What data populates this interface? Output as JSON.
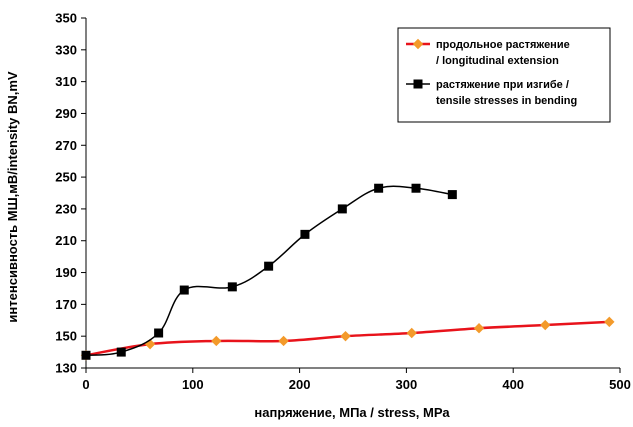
{
  "chart_data": {
    "type": "line",
    "xlabel": "напряжение, МПа / stress, МРа",
    "ylabel": "интенсивность МШ,мВ/intensity BN,mV",
    "xlim": [
      0,
      500
    ],
    "ylim": [
      130,
      350
    ],
    "x_ticks": [
      "0",
      "100",
      "200",
      "300",
      "400",
      "500"
    ],
    "y_ticks": [
      "130",
      "150",
      "170",
      "190",
      "210",
      "230",
      "250",
      "270",
      "290",
      "310",
      "330",
      "350"
    ],
    "grid": false,
    "legend_position": "top-right",
    "series": [
      {
        "name_lines": [
          "продольное растяжение",
          "/ longitudinal extension"
        ],
        "color": "#e8131b",
        "marker": "diamond",
        "marker_color": "#f39a2b",
        "points": [
          [
            0,
            138
          ],
          [
            60,
            145
          ],
          [
            122,
            147
          ],
          [
            185,
            147
          ],
          [
            243,
            150
          ],
          [
            305,
            152
          ],
          [
            368,
            155
          ],
          [
            430,
            157
          ],
          [
            490,
            159
          ]
        ]
      },
      {
        "name_lines": [
          "растяжение при изгибе /",
          "tensile stresses in bending"
        ],
        "color": "#000000",
        "marker": "square",
        "marker_color": "#000000",
        "points": [
          [
            0,
            138
          ],
          [
            33,
            140
          ],
          [
            68,
            152
          ],
          [
            92,
            179
          ],
          [
            137,
            181
          ],
          [
            171,
            194
          ],
          [
            205,
            214
          ],
          [
            240,
            230
          ],
          [
            274,
            243
          ],
          [
            309,
            243
          ],
          [
            343,
            239
          ]
        ]
      }
    ]
  }
}
